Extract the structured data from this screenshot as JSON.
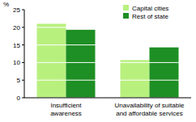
{
  "chart_data": {
    "type": "bar",
    "y_label": "%",
    "categories": [
      "Insufficient awareness",
      "Unavailability of suitable and affordable services"
    ],
    "series": [
      {
        "name": "Capital cities",
        "color": "#b8f07e",
        "values": [
          21.0,
          10.7
        ]
      },
      {
        "name": "Rest of state",
        "color": "#1e8f24",
        "values": [
          19.3,
          14.3
        ]
      }
    ],
    "ylim": [
      0,
      25
    ],
    "yticks": [
      0,
      5,
      10,
      15,
      20,
      25
    ],
    "grid": true,
    "legend": "top-right"
  }
}
